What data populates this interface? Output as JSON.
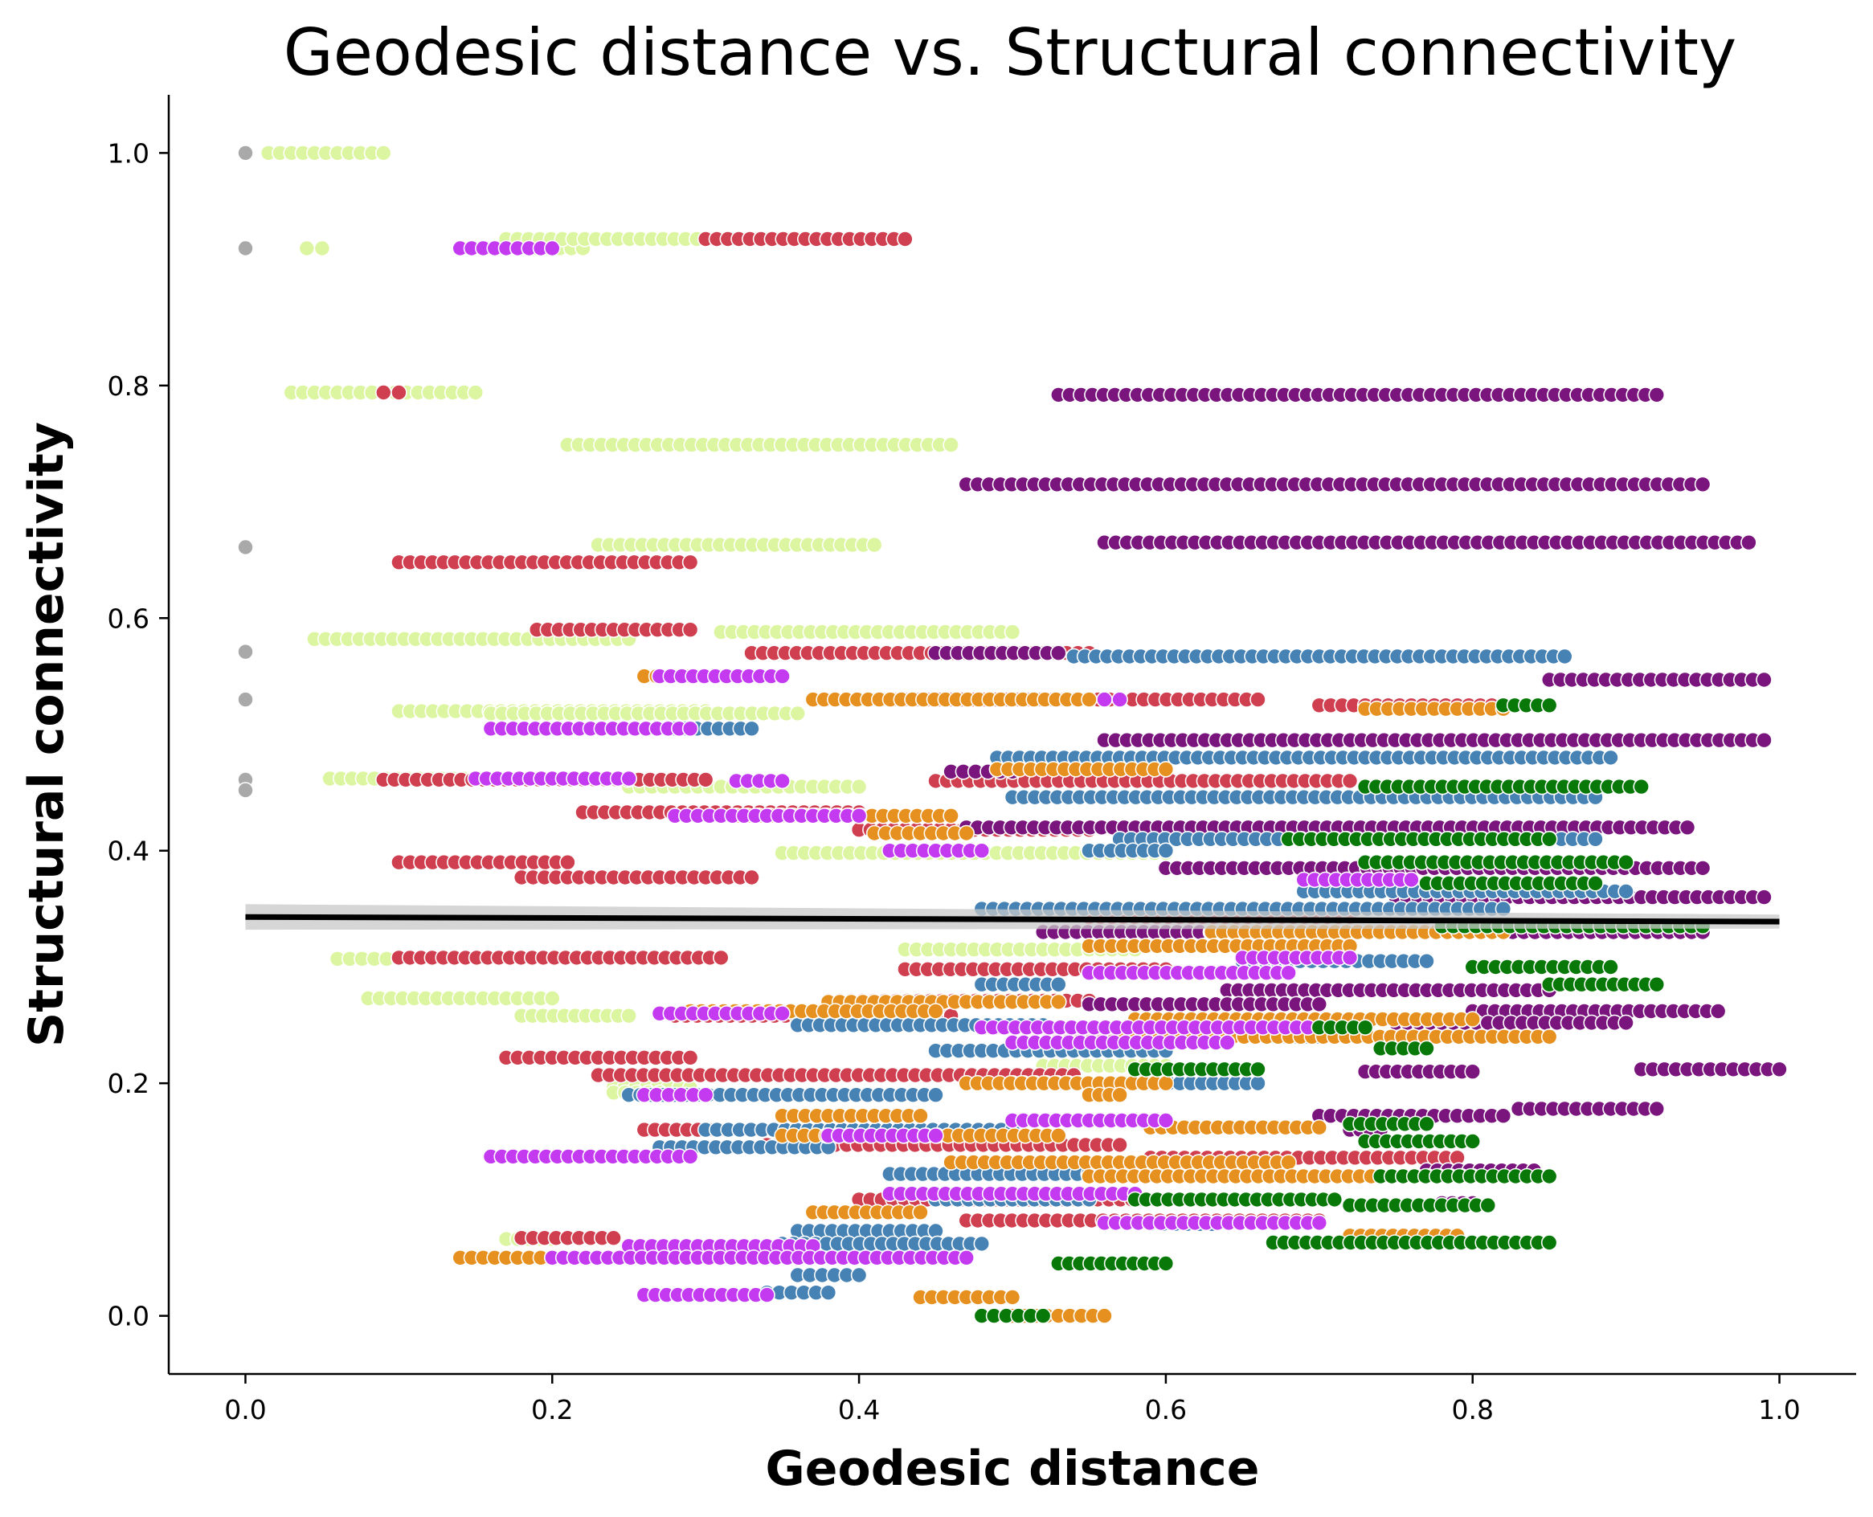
{
  "chart_data": {
    "type": "scatter",
    "title": "Geodesic distance vs. Structural connectivity",
    "xlabel": "Geodesic distance",
    "ylabel": "Structural connectivity",
    "xlim": [
      -0.05,
      1.05
    ],
    "ylim": [
      -0.05,
      1.05
    ],
    "xticks": [
      0.0,
      0.2,
      0.4,
      0.6,
      0.8,
      1.0
    ],
    "yticks": [
      0.0,
      0.2,
      0.4,
      0.6,
      0.8,
      1.0
    ],
    "xtick_labels": [
      "0.0",
      "0.2",
      "0.4",
      "0.6",
      "0.8",
      "1.0"
    ],
    "ytick_labels": [
      "0.0",
      "0.2",
      "0.4",
      "0.6",
      "0.8",
      "1.0"
    ],
    "legend": "none",
    "grid": false,
    "marker_edge_color": "#ffffff",
    "colors": {
      "gray": "#a9a9a9",
      "light_green": "#dcf5a0",
      "red": "#cf3f4f",
      "purple": "#7b157e",
      "blue": "#4682b4",
      "orange": "#e6901f",
      "magenta": "#c43af0",
      "green": "#087808",
      "regression_line": "#000000",
      "confidence_band": "#c8c8c8"
    },
    "regression": {
      "x": [
        0.0,
        1.0
      ],
      "y": [
        0.343,
        0.339
      ],
      "ci_halfwidth": [
        0.011,
        0.006
      ]
    },
    "groups": [
      {
        "color": "gray",
        "rows": [
          [
            1.0,
            0.0,
            0.0
          ],
          [
            0.918,
            0.0,
            0.0
          ],
          [
            0.661,
            0.0,
            0.0
          ],
          [
            0.571,
            0.0,
            0.0
          ],
          [
            0.53,
            0.0,
            0.0
          ],
          [
            0.461,
            0.0,
            0.0
          ],
          [
            0.452,
            0.0,
            0.0
          ]
        ]
      },
      {
        "color": "light_green",
        "rows": [
          [
            1.0,
            0.015,
            0.09
          ],
          [
            0.918,
            0.04,
            0.05
          ],
          [
            0.918,
            0.19,
            0.22
          ],
          [
            0.926,
            0.17,
            0.36
          ],
          [
            0.926,
            0.35,
            0.43
          ],
          [
            0.794,
            0.03,
            0.15
          ],
          [
            0.749,
            0.21,
            0.46
          ],
          [
            0.663,
            0.23,
            0.41
          ],
          [
            0.588,
            0.31,
            0.5
          ],
          [
            0.582,
            0.045,
            0.25
          ],
          [
            0.52,
            0.1,
            0.3
          ],
          [
            0.518,
            0.16,
            0.36
          ],
          [
            0.462,
            0.055,
            0.2
          ],
          [
            0.455,
            0.25,
            0.4
          ],
          [
            0.39,
            0.1,
            0.15
          ],
          [
            0.398,
            0.35,
            0.6
          ],
          [
            0.315,
            0.43,
            0.58
          ],
          [
            0.307,
            0.06,
            0.1
          ],
          [
            0.273,
            0.08,
            0.2
          ],
          [
            0.258,
            0.18,
            0.25
          ],
          [
            0.215,
            0.52,
            0.6
          ],
          [
            0.196,
            0.24,
            0.29
          ],
          [
            0.192,
            0.24,
            0.27
          ],
          [
            0.066,
            0.17,
            0.2
          ]
        ]
      },
      {
        "color": "red",
        "rows": [
          [
            0.926,
            0.3,
            0.43
          ],
          [
            0.794,
            0.09,
            0.1
          ],
          [
            0.648,
            0.1,
            0.29
          ],
          [
            0.59,
            0.19,
            0.29
          ],
          [
            0.57,
            0.33,
            0.55
          ],
          [
            0.55,
            0.26,
            0.29
          ],
          [
            0.53,
            0.4,
            0.66
          ],
          [
            0.525,
            0.7,
            0.85
          ],
          [
            0.461,
            0.09,
            0.3
          ],
          [
            0.46,
            0.45,
            0.72
          ],
          [
            0.433,
            0.22,
            0.4
          ],
          [
            0.418,
            0.4,
            0.55
          ],
          [
            0.39,
            0.1,
            0.21
          ],
          [
            0.377,
            0.18,
            0.33
          ],
          [
            0.343,
            0.55,
            0.72
          ],
          [
            0.308,
            0.1,
            0.31
          ],
          [
            0.298,
            0.43,
            0.6
          ],
          [
            0.271,
            0.38,
            0.55
          ],
          [
            0.258,
            0.28,
            0.46
          ],
          [
            0.236,
            0.5,
            0.58
          ],
          [
            0.222,
            0.17,
            0.29
          ],
          [
            0.207,
            0.23,
            0.54
          ],
          [
            0.16,
            0.26,
            0.33
          ],
          [
            0.147,
            0.34,
            0.57
          ],
          [
            0.136,
            0.59,
            0.79
          ],
          [
            0.1,
            0.4,
            0.6
          ],
          [
            0.082,
            0.47,
            0.7
          ],
          [
            0.067,
            0.18,
            0.24
          ]
        ]
      },
      {
        "color": "purple",
        "rows": [
          [
            0.792,
            0.53,
            0.92
          ],
          [
            0.715,
            0.47,
            0.95
          ],
          [
            0.665,
            0.56,
            0.98
          ],
          [
            0.57,
            0.45,
            0.53
          ],
          [
            0.547,
            0.85,
            0.99
          ],
          [
            0.495,
            0.56,
            0.99
          ],
          [
            0.468,
            0.46,
            0.5
          ],
          [
            0.42,
            0.47,
            0.94
          ],
          [
            0.385,
            0.6,
            0.95
          ],
          [
            0.36,
            0.75,
            0.99
          ],
          [
            0.33,
            0.52,
            0.95
          ],
          [
            0.28,
            0.64,
            0.85
          ],
          [
            0.268,
            0.55,
            0.7
          ],
          [
            0.262,
            0.8,
            0.96
          ],
          [
            0.252,
            0.75,
            0.9
          ],
          [
            0.21,
            0.73,
            0.8
          ],
          [
            0.212,
            0.91,
            1.0
          ],
          [
            0.172,
            0.7,
            0.82
          ],
          [
            0.178,
            0.83,
            0.92
          ],
          [
            0.16,
            0.72,
            0.74
          ],
          [
            0.125,
            0.77,
            0.84
          ],
          [
            0.097,
            0.78,
            0.8
          ]
        ]
      },
      {
        "color": "blue",
        "rows": [
          [
            0.567,
            0.54,
            0.86
          ],
          [
            0.505,
            0.28,
            0.33
          ],
          [
            0.48,
            0.49,
            0.89
          ],
          [
            0.446,
            0.5,
            0.88
          ],
          [
            0.41,
            0.57,
            0.88
          ],
          [
            0.4,
            0.55,
            0.6
          ],
          [
            0.365,
            0.69,
            0.9
          ],
          [
            0.35,
            0.48,
            0.82
          ],
          [
            0.305,
            0.65,
            0.77
          ],
          [
            0.285,
            0.48,
            0.53
          ],
          [
            0.262,
            0.34,
            0.45
          ],
          [
            0.25,
            0.36,
            0.52
          ],
          [
            0.24,
            0.6,
            0.7
          ],
          [
            0.228,
            0.45,
            0.6
          ],
          [
            0.2,
            0.5,
            0.66
          ],
          [
            0.19,
            0.25,
            0.45
          ],
          [
            0.16,
            0.3,
            0.5
          ],
          [
            0.145,
            0.27,
            0.38
          ],
          [
            0.122,
            0.42,
            0.6
          ],
          [
            0.1,
            0.45,
            0.55
          ],
          [
            0.079,
            0.59,
            0.63
          ],
          [
            0.073,
            0.36,
            0.45
          ],
          [
            0.062,
            0.35,
            0.48
          ],
          [
            0.05,
            0.33,
            0.39
          ],
          [
            0.035,
            0.36,
            0.4
          ],
          [
            0.02,
            0.34,
            0.38
          ]
        ]
      },
      {
        "color": "orange",
        "rows": [
          [
            0.55,
            0.26,
            0.3
          ],
          [
            0.53,
            0.37,
            0.55
          ],
          [
            0.522,
            0.73,
            0.82
          ],
          [
            0.47,
            0.49,
            0.6
          ],
          [
            0.43,
            0.32,
            0.46
          ],
          [
            0.415,
            0.41,
            0.47
          ],
          [
            0.33,
            0.63,
            0.82
          ],
          [
            0.318,
            0.55,
            0.72
          ],
          [
            0.27,
            0.38,
            0.53
          ],
          [
            0.262,
            0.29,
            0.45
          ],
          [
            0.255,
            0.58,
            0.8
          ],
          [
            0.24,
            0.57,
            0.85
          ],
          [
            0.2,
            0.47,
            0.6
          ],
          [
            0.19,
            0.55,
            0.57
          ],
          [
            0.172,
            0.35,
            0.44
          ],
          [
            0.162,
            0.59,
            0.7
          ],
          [
            0.155,
            0.35,
            0.53
          ],
          [
            0.132,
            0.46,
            0.68
          ],
          [
            0.12,
            0.55,
            0.8
          ],
          [
            0.089,
            0.37,
            0.44
          ],
          [
            0.069,
            0.72,
            0.79
          ],
          [
            0.05,
            0.14,
            0.2
          ],
          [
            0.016,
            0.44,
            0.5
          ],
          [
            0.0,
            0.5,
            0.56
          ]
        ]
      },
      {
        "color": "magenta",
        "rows": [
          [
            0.918,
            0.14,
            0.2
          ],
          [
            0.55,
            0.27,
            0.35
          ],
          [
            0.53,
            0.56,
            0.57
          ],
          [
            0.505,
            0.16,
            0.29
          ],
          [
            0.462,
            0.15,
            0.25
          ],
          [
            0.46,
            0.32,
            0.35
          ],
          [
            0.43,
            0.28,
            0.4
          ],
          [
            0.4,
            0.42,
            0.48
          ],
          [
            0.375,
            0.69,
            0.76
          ],
          [
            0.308,
            0.65,
            0.72
          ],
          [
            0.295,
            0.55,
            0.68
          ],
          [
            0.26,
            0.27,
            0.35
          ],
          [
            0.248,
            0.48,
            0.7
          ],
          [
            0.235,
            0.5,
            0.64
          ],
          [
            0.19,
            0.26,
            0.3
          ],
          [
            0.168,
            0.5,
            0.6
          ],
          [
            0.155,
            0.38,
            0.45
          ],
          [
            0.137,
            0.16,
            0.29
          ],
          [
            0.105,
            0.42,
            0.58
          ],
          [
            0.08,
            0.56,
            0.7
          ],
          [
            0.06,
            0.25,
            0.37
          ],
          [
            0.05,
            0.2,
            0.47
          ],
          [
            0.018,
            0.26,
            0.34
          ]
        ]
      },
      {
        "color": "green",
        "rows": [
          [
            0.525,
            0.82,
            0.85
          ],
          [
            0.455,
            0.73,
            0.91
          ],
          [
            0.41,
            0.68,
            0.85
          ],
          [
            0.39,
            0.73,
            0.9
          ],
          [
            0.372,
            0.77,
            0.88
          ],
          [
            0.335,
            0.78,
            0.95
          ],
          [
            0.3,
            0.8,
            0.89
          ],
          [
            0.285,
            0.85,
            0.92
          ],
          [
            0.248,
            0.7,
            0.73
          ],
          [
            0.23,
            0.74,
            0.77
          ],
          [
            0.212,
            0.58,
            0.66
          ],
          [
            0.165,
            0.72,
            0.77
          ],
          [
            0.15,
            0.73,
            0.8
          ],
          [
            0.12,
            0.74,
            0.85
          ],
          [
            0.1,
            0.58,
            0.71
          ],
          [
            0.095,
            0.72,
            0.81
          ],
          [
            0.063,
            0.67,
            0.85
          ],
          [
            0.045,
            0.53,
            0.6
          ],
          [
            0.0,
            0.48,
            0.52
          ]
        ]
      }
    ]
  }
}
